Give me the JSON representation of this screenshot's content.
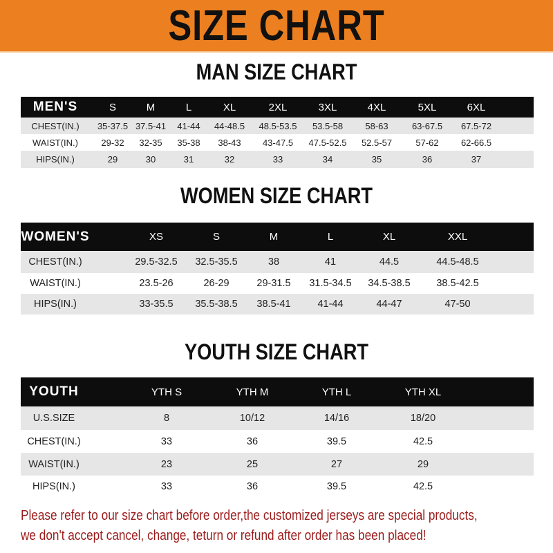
{
  "banner": {
    "title": "SIZE CHART",
    "color": "#EC8020"
  },
  "men": {
    "title": "MAN SIZE CHART",
    "header": [
      "MEN'S",
      "S",
      "M",
      "L",
      "XL",
      "2XL",
      "3XL",
      "4XL",
      "5XL",
      "6XL"
    ],
    "rows": [
      [
        "CHEST(IN.)",
        "35-37.5",
        "37.5-41",
        "41-44",
        "44-48.5",
        "48.5-53.5",
        "53.5-58",
        "58-63",
        "63-67.5",
        "67.5-72"
      ],
      [
        "WAIST(IN.)",
        "29-32",
        "32-35",
        "35-38",
        "38-43",
        "43-47.5",
        "47.5-52.5",
        "52.5-57",
        "57-62",
        "62-66.5"
      ],
      [
        "HIPS(IN.)",
        "29",
        "30",
        "31",
        "32",
        "33",
        "34",
        "35",
        "36",
        "37"
      ]
    ]
  },
  "women": {
    "title": "WOMEN SIZE CHART",
    "header": [
      "WOMEN'S",
      "XS",
      "S",
      "M",
      "L",
      "XL",
      "XXL"
    ],
    "rows": [
      [
        "CHEST(IN.)",
        "29.5-32.5",
        "32.5-35.5",
        "38",
        "41",
        "44.5",
        "44.5-48.5"
      ],
      [
        "WAIST(IN.)",
        "23.5-26",
        "26-29",
        "29-31.5",
        "31.5-34.5",
        "34.5-38.5",
        "38.5-42.5"
      ],
      [
        "HIPS(IN.)",
        "33-35.5",
        "35.5-38.5",
        "38.5-41",
        "41-44",
        "44-47",
        "47-50"
      ]
    ]
  },
  "youth": {
    "title": "YOUTH SIZE CHART",
    "header": [
      "YOUTH",
      "YTH S",
      "YTH M",
      "YTH L",
      "YTH XL"
    ],
    "rows": [
      [
        "U.S.SIZE",
        "8",
        "10/12",
        "14/16",
        "18/20"
      ],
      [
        "CHEST(IN.)",
        "33",
        "36",
        "39.5",
        "42.5"
      ],
      [
        "WAIST(IN.)",
        "23",
        "25",
        "27",
        "29"
      ],
      [
        "HIPS(IN.)",
        "33",
        "36",
        "39.5",
        "42.5"
      ]
    ]
  },
  "footer": {
    "line1": "Please refer to our size chart before order,the customized jerseys are special products,",
    "line2": "we don't accept cancel, change, teturn or refund after order has been placed!",
    "color": "#9b1b1b"
  }
}
